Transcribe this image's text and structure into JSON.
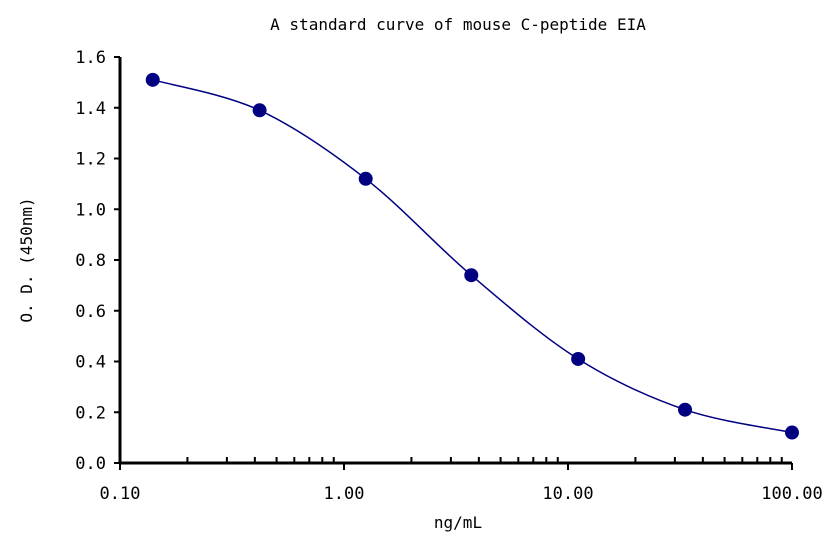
{
  "chart_data": {
    "type": "scatter",
    "title": "A standard curve of mouse C-peptide EIA",
    "xlabel": "ng/mL",
    "ylabel": "O. D. (450nm)",
    "x_scale": "log",
    "xlim": [
      0.1,
      100
    ],
    "ylim": [
      0,
      1.6
    ],
    "x_ticks": [
      "0.10",
      "1.00",
      "10.00",
      "100.00"
    ],
    "y_ticks": [
      "0.0",
      "0.2",
      "0.4",
      "0.6",
      "0.8",
      "1.0",
      "1.2",
      "1.4",
      "1.6"
    ],
    "grid": false,
    "legend": "none",
    "smooth_line": true,
    "marker_color": "#000080",
    "line_color": "#000080",
    "series": [
      {
        "x": [
          0.14,
          0.42,
          1.25,
          3.7,
          11.1,
          33.3,
          100
        ],
        "y": [
          1.51,
          1.39,
          1.12,
          0.74,
          0.41,
          0.21,
          0.12
        ]
      }
    ]
  }
}
